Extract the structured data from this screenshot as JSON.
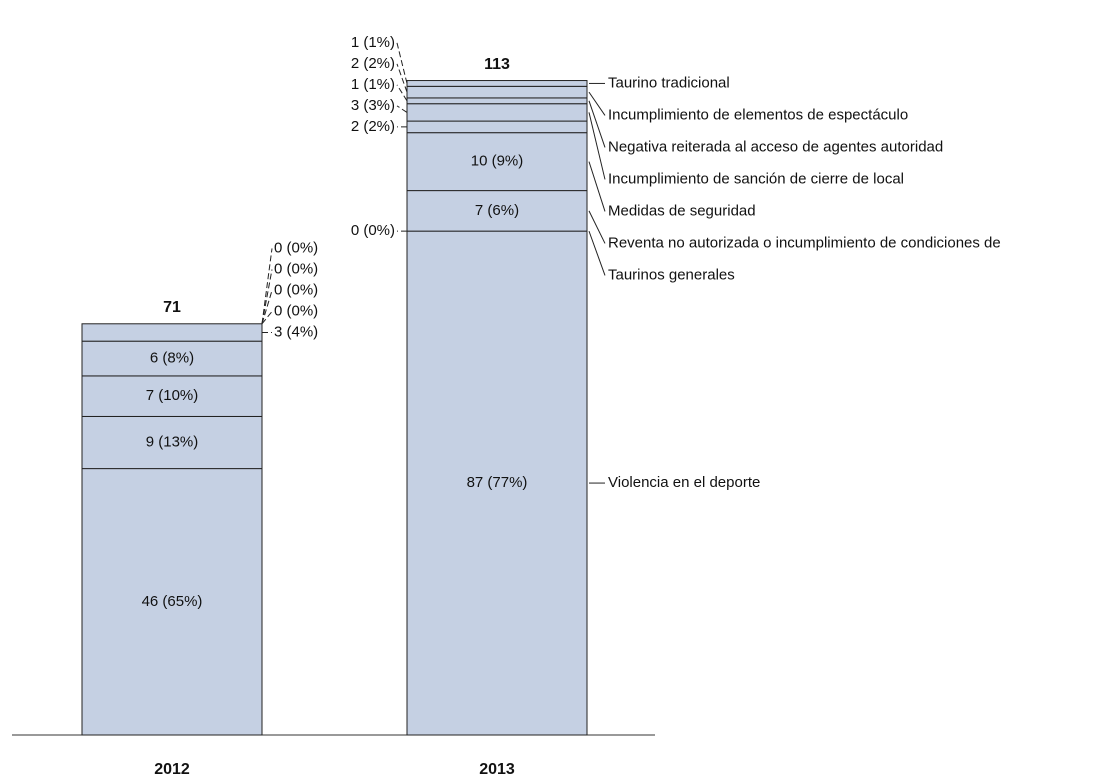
{
  "chart_data": {
    "type": "stacked_bar",
    "categories": [
      "2012",
      "2013"
    ],
    "totals": [
      71,
      113
    ],
    "ylim": [
      0,
      120
    ],
    "color": "#c5d0e3",
    "series": [
      {
        "name": "Violencia en el deporte",
        "values": [
          46,
          87
        ],
        "value_labels": [
          "46 (65%)",
          "87 (77%)"
        ]
      },
      {
        "name": "Taurinos generales",
        "values": [
          9,
          0
        ],
        "value_labels": [
          "9 (13%)",
          "0 (0%)"
        ]
      },
      {
        "name": "Reventa no autorizada o incumplimiento de condiciones de",
        "values": [
          7,
          7
        ],
        "value_labels": [
          "7 (10%)",
          "7 (6%)"
        ]
      },
      {
        "name": "Medidas de seguridad",
        "values": [
          6,
          10
        ],
        "value_labels": [
          "6 (8%)",
          "10 (9%)"
        ]
      },
      {
        "values": [
          3,
          2
        ],
        "value_labels": [
          "3 (4%)",
          "2 (2%)"
        ]
      },
      {
        "name": "Incumplimiento de sanción de cierre de local",
        "values": [
          0,
          3
        ],
        "value_labels": [
          "0 (0%)",
          "3 (3%)"
        ]
      },
      {
        "name": "Negativa reiterada al acceso de agentes autoridad",
        "values": [
          0,
          1
        ],
        "value_labels": [
          "0 (0%)",
          "1 (1%)"
        ]
      },
      {
        "name": "Incumplimiento de elementos de espectáculo",
        "values": [
          0,
          2
        ],
        "value_labels": [
          "0 (0%)",
          "2 (2%)"
        ]
      },
      {
        "name": "Taurino tradicional",
        "values": [
          0,
          1
        ],
        "value_labels": [
          "0 (0%)",
          "1 (1%)"
        ]
      }
    ]
  }
}
